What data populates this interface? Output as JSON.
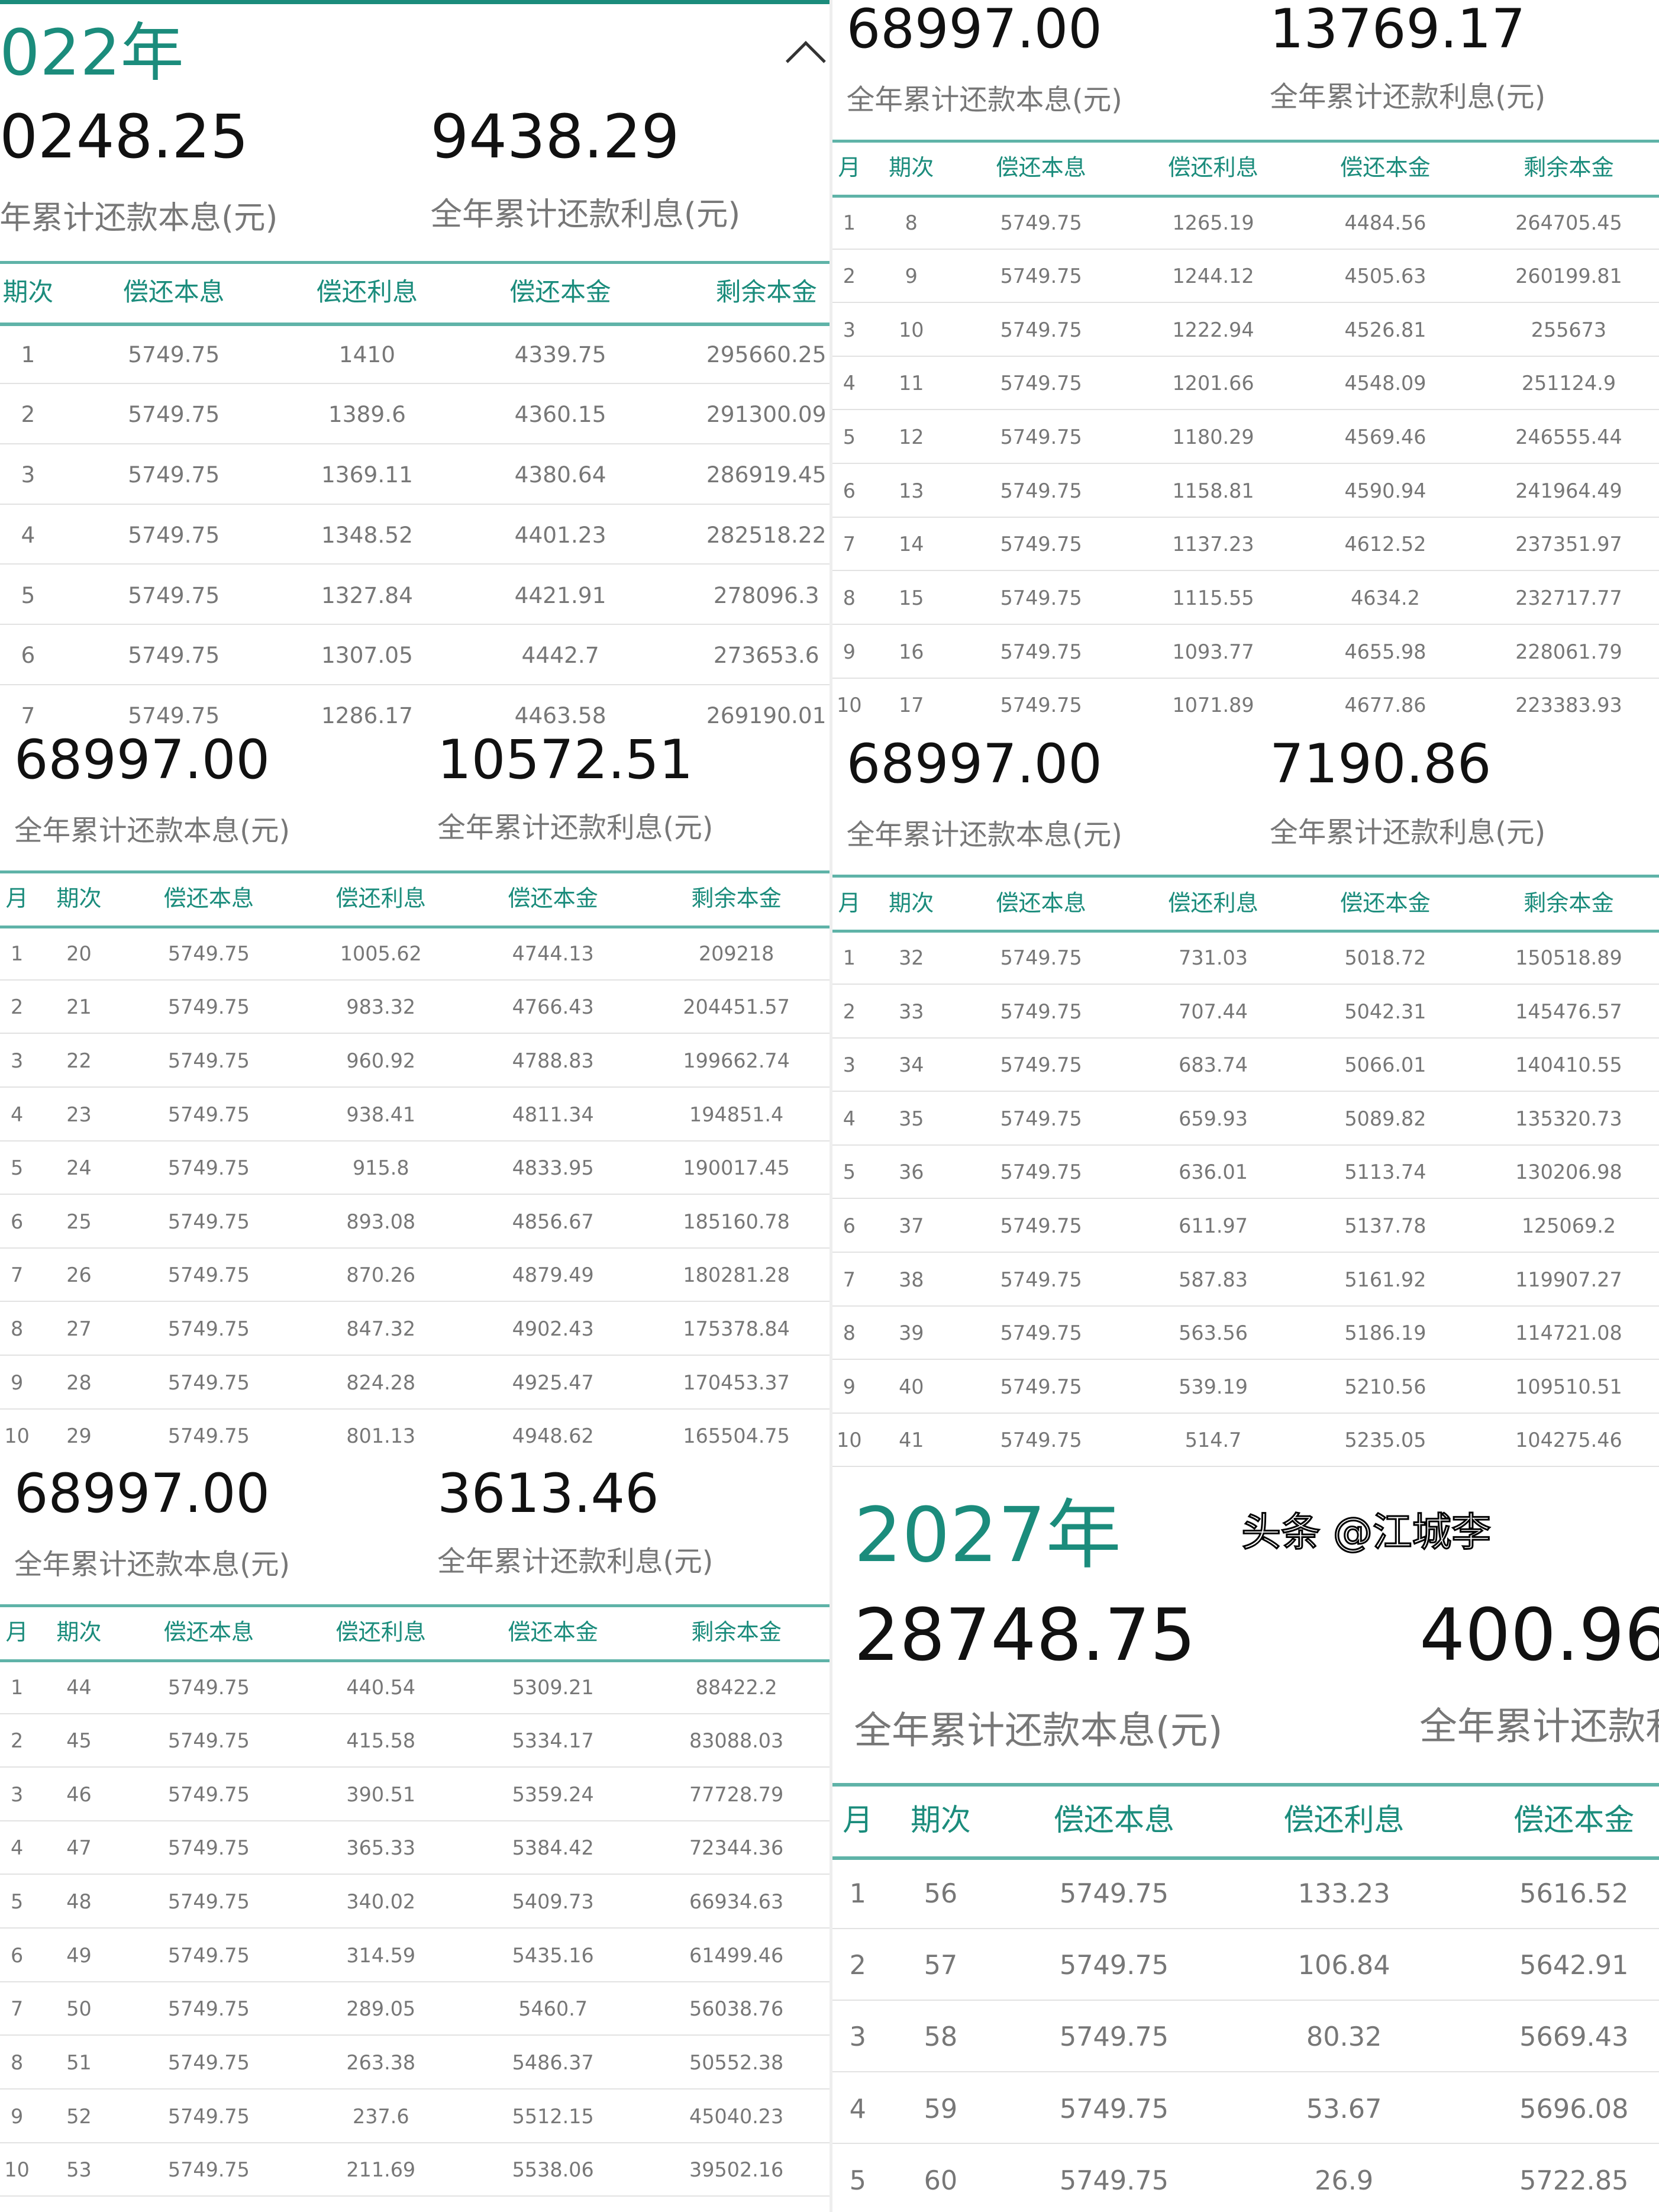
{
  "colors": {
    "accent": "#1b8c7c",
    "text": "#111111",
    "muted": "#777777"
  },
  "headers": [
    "月",
    "期次",
    "偿还本息",
    "偿还利息",
    "偿还本金",
    "剩余本金"
  ],
  "watermark": "头条 @江城李",
  "panels": [
    {
      "year": "022年",
      "collapse_icon": "chevron-up-icon",
      "total_payment": "0248.25",
      "total_payment_label": "年累计还款本息(元)",
      "total_interest": "9438.29",
      "total_interest_label": "全年累计还款利息(元)",
      "rows": [
        [
          null,
          "1",
          "5749.75",
          "1410",
          "4339.75",
          "295660.25"
        ],
        [
          null,
          "2",
          "5749.75",
          "1389.6",
          "4360.15",
          "291300.09"
        ],
        [
          null,
          "3",
          "5749.75",
          "1369.11",
          "4380.64",
          "286919.45"
        ],
        [
          null,
          "4",
          "5749.75",
          "1348.52",
          "4401.23",
          "282518.22"
        ],
        [
          null,
          "5",
          "5749.75",
          "1327.84",
          "4421.91",
          "278096.3"
        ],
        [
          null,
          "6",
          "5749.75",
          "1307.05",
          "4442.7",
          "273653.6"
        ],
        [
          null,
          "7",
          "5749.75",
          "1286.17",
          "4463.58",
          "269190.01"
        ]
      ]
    },
    {
      "total_payment": "68997.00",
      "total_payment_label": "全年累计还款本息(元)",
      "total_interest": "13769.17",
      "total_interest_label": "全年累计还款利息(元)",
      "rows": [
        [
          "1",
          "8",
          "5749.75",
          "1265.19",
          "4484.56",
          "264705.45"
        ],
        [
          "2",
          "9",
          "5749.75",
          "1244.12",
          "4505.63",
          "260199.81"
        ],
        [
          "3",
          "10",
          "5749.75",
          "1222.94",
          "4526.81",
          "255673"
        ],
        [
          "4",
          "11",
          "5749.75",
          "1201.66",
          "4548.09",
          "251124.9"
        ],
        [
          "5",
          "12",
          "5749.75",
          "1180.29",
          "4569.46",
          "246555.44"
        ],
        [
          "6",
          "13",
          "5749.75",
          "1158.81",
          "4590.94",
          "241964.49"
        ],
        [
          "7",
          "14",
          "5749.75",
          "1137.23",
          "4612.52",
          "237351.97"
        ],
        [
          "8",
          "15",
          "5749.75",
          "1115.55",
          "4634.2",
          "232717.77"
        ],
        [
          "9",
          "16",
          "5749.75",
          "1093.77",
          "4655.98",
          "228061.79"
        ],
        [
          "10",
          "17",
          "5749.75",
          "1071.89",
          "4677.86",
          "223383.93"
        ]
      ]
    },
    {
      "total_payment": "68997.00",
      "total_payment_label": "全年累计还款本息(元)",
      "total_interest": "10572.51",
      "total_interest_label": "全年累计还款利息(元)",
      "rows": [
        [
          "1",
          "20",
          "5749.75",
          "1005.62",
          "4744.13",
          "209218"
        ],
        [
          "2",
          "21",
          "5749.75",
          "983.32",
          "4766.43",
          "204451.57"
        ],
        [
          "3",
          "22",
          "5749.75",
          "960.92",
          "4788.83",
          "199662.74"
        ],
        [
          "4",
          "23",
          "5749.75",
          "938.41",
          "4811.34",
          "194851.4"
        ],
        [
          "5",
          "24",
          "5749.75",
          "915.8",
          "4833.95",
          "190017.45"
        ],
        [
          "6",
          "25",
          "5749.75",
          "893.08",
          "4856.67",
          "185160.78"
        ],
        [
          "7",
          "26",
          "5749.75",
          "870.26",
          "4879.49",
          "180281.28"
        ],
        [
          "8",
          "27",
          "5749.75",
          "847.32",
          "4902.43",
          "175378.84"
        ],
        [
          "9",
          "28",
          "5749.75",
          "824.28",
          "4925.47",
          "170453.37"
        ],
        [
          "10",
          "29",
          "5749.75",
          "801.13",
          "4948.62",
          "165504.75"
        ]
      ]
    },
    {
      "total_payment": "68997.00",
      "total_payment_label": "全年累计还款本息(元)",
      "total_interest": "7190.86",
      "total_interest_label": "全年累计还款利息(元)",
      "rows": [
        [
          "1",
          "32",
          "5749.75",
          "731.03",
          "5018.72",
          "150518.89"
        ],
        [
          "2",
          "33",
          "5749.75",
          "707.44",
          "5042.31",
          "145476.57"
        ],
        [
          "3",
          "34",
          "5749.75",
          "683.74",
          "5066.01",
          "140410.55"
        ],
        [
          "4",
          "35",
          "5749.75",
          "659.93",
          "5089.82",
          "135320.73"
        ],
        [
          "5",
          "36",
          "5749.75",
          "636.01",
          "5113.74",
          "130206.98"
        ],
        [
          "6",
          "37",
          "5749.75",
          "611.97",
          "5137.78",
          "125069.2"
        ],
        [
          "7",
          "38",
          "5749.75",
          "587.83",
          "5161.92",
          "119907.27"
        ],
        [
          "8",
          "39",
          "5749.75",
          "563.56",
          "5186.19",
          "114721.08"
        ],
        [
          "9",
          "40",
          "5749.75",
          "539.19",
          "5210.56",
          "109510.51"
        ],
        [
          "10",
          "41",
          "5749.75",
          "514.7",
          "5235.05",
          "104275.46"
        ]
      ]
    },
    {
      "total_payment": "68997.00",
      "total_payment_label": "全年累计还款本息(元)",
      "total_interest": "3613.46",
      "total_interest_label": "全年累计还款利息(元)",
      "rows": [
        [
          "1",
          "44",
          "5749.75",
          "440.54",
          "5309.21",
          "88422.2"
        ],
        [
          "2",
          "45",
          "5749.75",
          "415.58",
          "5334.17",
          "83088.03"
        ],
        [
          "3",
          "46",
          "5749.75",
          "390.51",
          "5359.24",
          "77728.79"
        ],
        [
          "4",
          "47",
          "5749.75",
          "365.33",
          "5384.42",
          "72344.36"
        ],
        [
          "5",
          "48",
          "5749.75",
          "340.02",
          "5409.73",
          "66934.63"
        ],
        [
          "6",
          "49",
          "5749.75",
          "314.59",
          "5435.16",
          "61499.46"
        ],
        [
          "7",
          "50",
          "5749.75",
          "289.05",
          "5460.7",
          "56038.76"
        ],
        [
          "8",
          "51",
          "5749.75",
          "263.38",
          "5486.37",
          "50552.38"
        ],
        [
          "9",
          "52",
          "5749.75",
          "237.6",
          "5512.15",
          "45040.23"
        ],
        [
          "10",
          "53",
          "5749.75",
          "211.69",
          "5538.06",
          "39502.16"
        ]
      ]
    },
    {
      "year": "2027年",
      "total_payment": "28748.75",
      "total_payment_label": "全年累计还款本息(元)",
      "total_interest": "400.96",
      "total_interest_label": "全年累计还款利息(元)",
      "rows": [
        [
          "1",
          "56",
          "5749.75",
          "133.23",
          "5616.52",
          null
        ],
        [
          "2",
          "57",
          "5749.75",
          "106.84",
          "5642.91",
          null
        ],
        [
          "3",
          "58",
          "5749.75",
          "80.32",
          "5669.43",
          null
        ],
        [
          "4",
          "59",
          "5749.75",
          "53.67",
          "5696.08",
          null
        ],
        [
          "5",
          "60",
          "5749.75",
          "26.9",
          "5722.85",
          null
        ]
      ]
    }
  ]
}
